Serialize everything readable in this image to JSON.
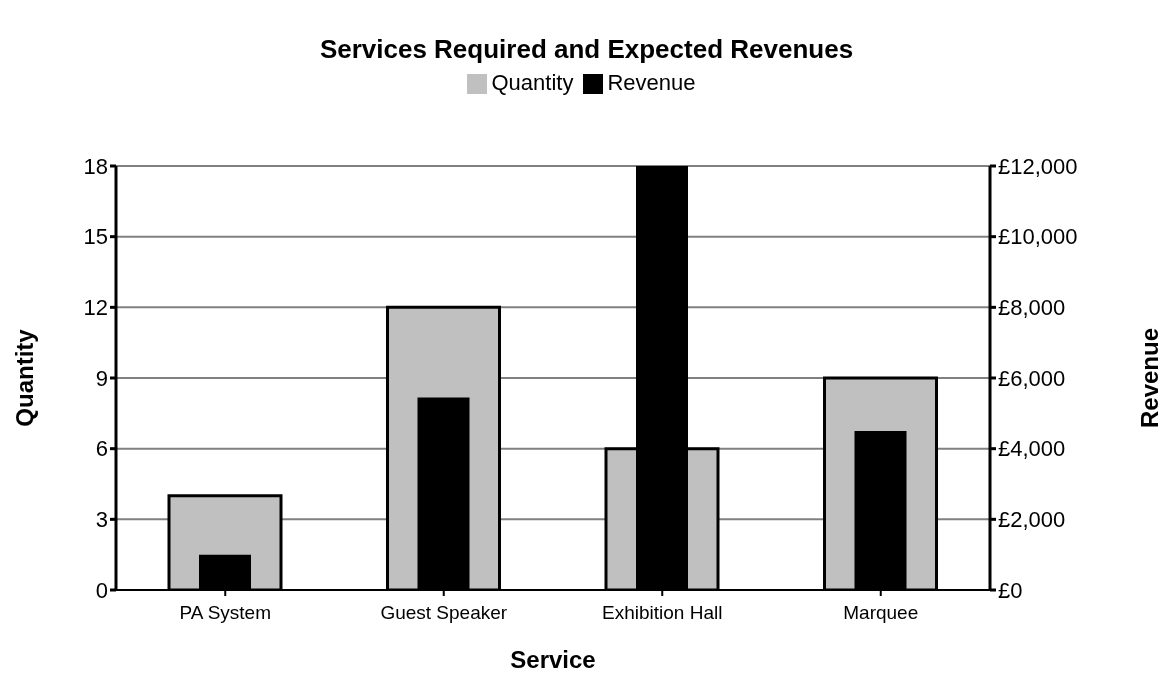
{
  "chart_data": {
    "type": "bar",
    "title": "Services Required and Expected Revenues",
    "xlabel": "Service",
    "ylabel": "Quantity",
    "y2label": "Revenue",
    "categories": [
      "PA System",
      "Guest Speaker",
      "Exhibition Hall",
      "Marquee"
    ],
    "series": [
      {
        "name": "Quantity",
        "color": "#c0c0c0",
        "values": [
          4,
          12,
          6,
          9
        ]
      },
      {
        "name": "Revenue",
        "color": "#000000",
        "axis": "y2",
        "values": [
          1000,
          5450,
          12000,
          4500
        ]
      }
    ],
    "ylim": [
      0,
      18
    ],
    "yticks": [
      0,
      3,
      6,
      9,
      12,
      15,
      18
    ],
    "y2lim": [
      0,
      12000
    ],
    "y2ticks": [
      {
        "value": 0,
        "label": "£0"
      },
      {
        "value": 2000,
        "label": "£2,000"
      },
      {
        "value": 4000,
        "label": "£4,000"
      },
      {
        "value": 6000,
        "label": "£6,000"
      },
      {
        "value": 8000,
        "label": "£8,000"
      },
      {
        "value": 10000,
        "label": "£10,000"
      },
      {
        "value": 12000,
        "label": "£12,000"
      }
    ],
    "grid": "y",
    "legend": "top"
  }
}
